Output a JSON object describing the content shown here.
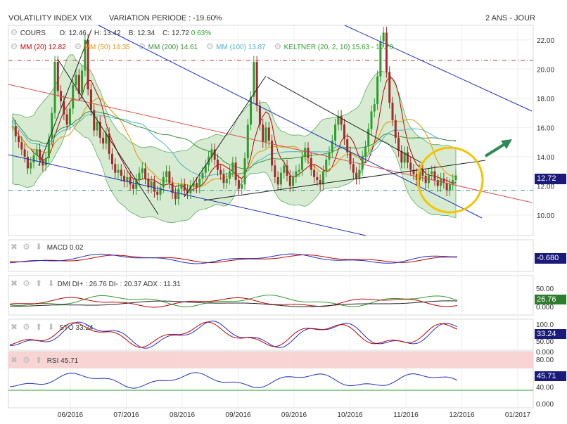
{
  "header": {
    "title": "VOLATILITY INDEX VIX",
    "variation": "VARIATION PERIODE : -19.60%",
    "period": "2 ANS - JOUR"
  },
  "main_legend": {
    "cours_label": "COURS",
    "o": "O: 12.46",
    "h": "H: 13.42",
    "b": "B: 12.34",
    "c": "C: 12.72",
    "chg": "0.63%",
    "mm20": "MM (20) 12.82",
    "mm50": "MM (50) 14.35",
    "mm200": "MM (200) 14.61",
    "mm100": "MM (100) 13.87",
    "keltner": "KELTNER (20, 2, 10) 15.63 - 10.70"
  },
  "price_badge": "12.72",
  "panels": {
    "macd": {
      "label": "MACD",
      "value": "0.02",
      "badge": "-0.680"
    },
    "dmi": {
      "label": "DMI DI+ : 26.76 DI- : 20.37 ADX : 11.31",
      "badge": "26.76",
      "ticks": [
        "50.00",
        "0.000"
      ]
    },
    "sto": {
      "label": "STO",
      "value": "33.24",
      "badge": "33.24",
      "ticks": [
        "100.0",
        "50.00",
        "0.000"
      ]
    },
    "rsi": {
      "label": "RSI",
      "value": "45.71",
      "badge": "45.71",
      "ticks": [
        "80.00",
        "40.00",
        "0.000"
      ]
    }
  },
  "colors": {
    "bull": "#2e9d2e",
    "bear": "#a52a2a",
    "keltner_fill": "#cfe8c9",
    "mm20": "#c00000",
    "mm50": "#e69400",
    "mm200": "#3a8f3a",
    "mm100": "#4fb3c8",
    "badge": "#1a1a7a",
    "circle": "#f2c500",
    "arrow": "#2e8b57"
  },
  "chart_data": {
    "type": "candlestick",
    "title": "VOLATILITY INDEX VIX",
    "x_ticks": [
      "06/2016",
      "07/2016",
      "08/2016",
      "09/2016",
      "09/2016",
      "10/2016",
      "11/2016",
      "12/2016",
      "01/2017"
    ],
    "y_ticks": [
      10.0,
      12.0,
      14.0,
      16.0,
      18.0,
      20.0,
      22.0
    ],
    "ylim": [
      8.6,
      23.0
    ],
    "close": [
      16.1,
      15.4,
      15.0,
      14.5,
      14.0,
      13.2,
      13.6,
      14.1,
      14.5,
      13.8,
      13.4,
      13.9,
      15.2,
      17.0,
      20.5,
      18.5,
      17.8,
      16.9,
      16.2,
      17.3,
      18.9,
      19.6,
      18.3,
      19.9,
      22.0,
      18.6,
      17.2,
      15.8,
      16.4,
      15.3,
      14.9,
      15.6,
      14.2,
      13.5,
      12.9,
      13.1,
      12.7,
      12.3,
      12.6,
      12.1,
      11.8,
      12.4,
      12.9,
      13.2,
      12.5,
      11.9,
      12.3,
      11.6,
      11.4,
      11.9,
      12.6,
      13.0,
      12.2,
      11.5,
      11.1,
      11.8,
      12.1,
      11.7,
      11.5,
      12.0,
      12.2,
      11.9,
      12.5,
      12.9,
      13.4,
      14.0,
      14.5,
      13.8,
      13.1,
      12.8,
      12.2,
      12.5,
      13.0,
      13.6,
      12.4,
      11.8,
      12.1,
      13.9,
      16.2,
      18.1,
      20.5,
      17.5,
      16.2,
      15.0,
      16.0,
      15.1,
      13.4,
      12.6,
      12.1,
      12.9,
      13.4,
      12.7,
      12.0,
      12.6,
      13.0,
      13.1,
      14.0,
      14.6,
      13.9,
      13.1,
      12.6,
      12.4,
      12.1,
      13.0,
      13.8,
      14.3,
      15.1,
      16.2,
      16.8,
      16.2,
      15.2,
      14.3,
      13.5,
      12.9,
      12.5,
      13.1,
      14.0,
      14.7,
      15.9,
      17.1,
      17.6,
      19.5,
      21.9,
      22.5,
      19.8,
      17.7,
      16.5,
      15.3,
      14.4,
      13.6,
      14.3,
      13.6,
      13.1,
      12.8,
      12.4,
      13.1,
      12.7,
      12.2,
      12.8,
      13.0,
      12.4,
      12.0,
      12.5,
      12.2,
      11.7,
      12.1,
      12.4,
      12.72
    ],
    "series": [
      {
        "name": "MM (20)",
        "value": 12.82
      },
      {
        "name": "MM (50)",
        "value": 14.35
      },
      {
        "name": "MM (200)",
        "value": 14.61
      },
      {
        "name": "MM (100)",
        "value": 13.87
      },
      {
        "name": "KELTNER (20, 2, 10)",
        "upper": 15.63,
        "lower": 10.7
      }
    ],
    "last": {
      "open": 12.46,
      "high": 13.42,
      "low": 12.34,
      "close": 12.72,
      "change_pct": 0.63
    },
    "hlines": [
      20.6,
      11.7
    ],
    "indicators": {
      "macd": 0.02,
      "macd_badge": -0.68,
      "di_plus": 26.76,
      "di_minus": 20.37,
      "adx": 11.31,
      "sto": 33.24,
      "rsi": 45.71
    }
  }
}
